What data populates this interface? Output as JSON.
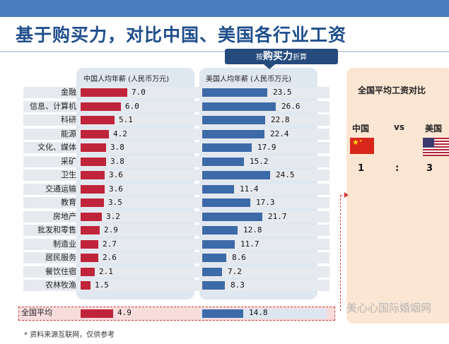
{
  "title": "基于购买力，对比中国、美国各行业工资",
  "badge": {
    "pre": "按",
    "main": "购买力",
    "post": "折算"
  },
  "chart_data": {
    "type": "bar",
    "categories": [
      "金融",
      "信息、计算机",
      "科研",
      "能源",
      "文化、媒体",
      "采矿",
      "卫生",
      "交通运输",
      "教育",
      "房地产",
      "批发和零售",
      "制造业",
      "居民服务",
      "餐饮住宿",
      "农林牧渔"
    ],
    "series": [
      {
        "name": "中国人均年薪（人民币万元）",
        "values": [
          7.0,
          6.0,
          5.1,
          4.2,
          3.8,
          3.8,
          3.6,
          3.6,
          3.5,
          3.2,
          2.9,
          2.7,
          2.6,
          2.1,
          1.5
        ],
        "color": "#c0243a"
      },
      {
        "name": "美国人均年薪（人民币万元）",
        "values": [
          23.5,
          26.6,
          22.8,
          22.4,
          17.9,
          15.2,
          24.5,
          11.4,
          17.3,
          21.7,
          12.8,
          11.7,
          8.6,
          7.2,
          8.3
        ],
        "color": "#3d6aa8"
      }
    ],
    "average": {
      "label": "全国平均",
      "values": [
        4.9,
        14.8
      ]
    },
    "value_labels": {
      "cn": [
        "7.0",
        "6.0",
        "5.1",
        "4.2",
        "3.8",
        "3.8",
        "3.6",
        "3.6",
        "3.5",
        "3.2",
        "2.9",
        "2.7",
        "2.6",
        "2.1",
        "1.5"
      ],
      "us": [
        "23.5",
        "26.6",
        "22.8",
        "22.4",
        "17.9",
        "15.2",
        "24.5",
        "11.4",
        "17.3",
        "21.7",
        "12.8",
        "11.7",
        "8.6",
        "7.2",
        "8.3"
      ],
      "avg": [
        "4.9",
        "14.8"
      ]
    },
    "ylim": [
      0,
      30
    ]
  },
  "col_headers": {
    "cn": "中国人均年薪  (人民币万元)",
    "us": "美国人均年薪  (人民币万元)"
  },
  "comparison": {
    "title": "全国平均工资对比",
    "left_label": "中国",
    "vs": "vs",
    "right_label": "美国",
    "left_value": "1",
    "sep": ":",
    "right_value": "3"
  },
  "footnote": "* 资料来源互联网，仅供参考",
  "watermark": "美心心国际婚姻网",
  "flags": {
    "china": "china-flag-icon",
    "usa": "usa-flag-icon"
  }
}
